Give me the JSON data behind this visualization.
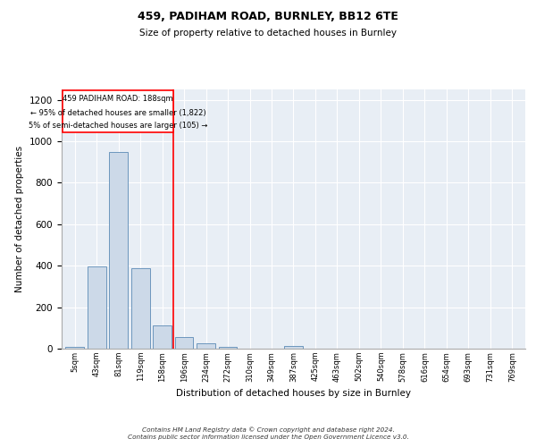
{
  "title1": "459, PADIHAM ROAD, BURNLEY, BB12 6TE",
  "title2": "Size of property relative to detached houses in Burnley",
  "xlabel": "Distribution of detached houses by size in Burnley",
  "ylabel": "Number of detached properties",
  "bar_labels": [
    "5sqm",
    "43sqm",
    "81sqm",
    "119sqm",
    "158sqm",
    "196sqm",
    "234sqm",
    "272sqm",
    "310sqm",
    "349sqm",
    "387sqm",
    "425sqm",
    "463sqm",
    "502sqm",
    "540sqm",
    "578sqm",
    "616sqm",
    "654sqm",
    "693sqm",
    "731sqm",
    "769sqm"
  ],
  "bar_values": [
    10,
    395,
    950,
    390,
    110,
    55,
    25,
    10,
    0,
    0,
    15,
    0,
    0,
    0,
    0,
    0,
    0,
    0,
    0,
    0,
    0
  ],
  "bar_color": "#ccd9e8",
  "bar_edge_color": "#5b8ab5",
  "background_color": "#e8eef5",
  "ylim": [
    0,
    1250
  ],
  "yticks": [
    0,
    200,
    400,
    600,
    800,
    1000,
    1200
  ],
  "property_line_x": 4.5,
  "annotation_line1": "459 PADIHAM ROAD: 188sqm",
  "annotation_line2": "← 95% of detached houses are smaller (1,822)",
  "annotation_line3": "5% of semi-detached houses are larger (105) →",
  "footer1": "Contains HM Land Registry data © Crown copyright and database right 2024.",
  "footer2": "Contains public sector information licensed under the Open Government Licence v3.0."
}
